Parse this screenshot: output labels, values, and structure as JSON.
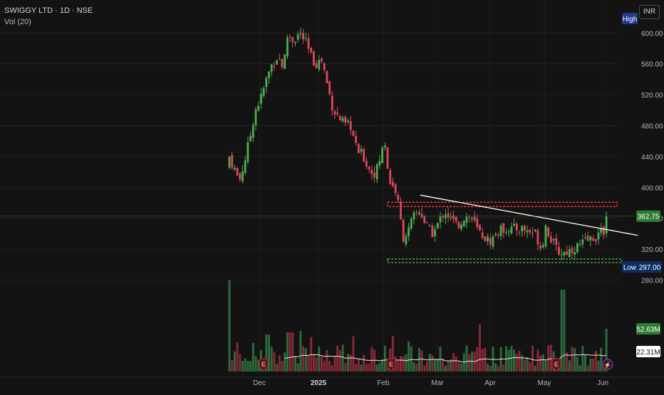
{
  "header": {
    "symbol": "SWIGGY LTD",
    "interval": "1D",
    "exchange": "NSE",
    "volume_indicator": "Vol (20)",
    "currency": "INR"
  },
  "colors": {
    "background": "#131313",
    "up": "#4caf50",
    "down": "#e0475b",
    "resistance": "#e53935",
    "support": "#43a047",
    "trendline": "#ffffff",
    "badge_high": "#1e3a8a",
    "badge_low": "#0d2e66",
    "badge_last": "#2e7d32"
  },
  "chart_data": {
    "type": "candlestick",
    "title": "",
    "x_ticks": [
      "Dec",
      "2025",
      "Feb",
      "Mar",
      "Apr",
      "May",
      "Jun"
    ],
    "y_ticks": [
      280,
      320,
      360,
      400,
      440,
      480,
      520,
      560,
      600
    ],
    "ylim": [
      263,
      615
    ],
    "grid": true,
    "price": {
      "last": 362.75,
      "last_label": "362.75",
      "high_label": "High",
      "low_label": "Low",
      "low_value": 297.0,
      "low_value_label": "297.00",
      "support_level": 305,
      "resistance_level": 378,
      "trendline": [
        [
          0,
          390
        ],
        [
          1,
          338
        ]
      ]
    },
    "volume": {
      "current_label": "52.63M",
      "ma_label": "22.31M",
      "ma_period": 20
    },
    "earnings_markers": [
      "E",
      "E",
      "E"
    ],
    "dividend_marker": "⚡"
  }
}
